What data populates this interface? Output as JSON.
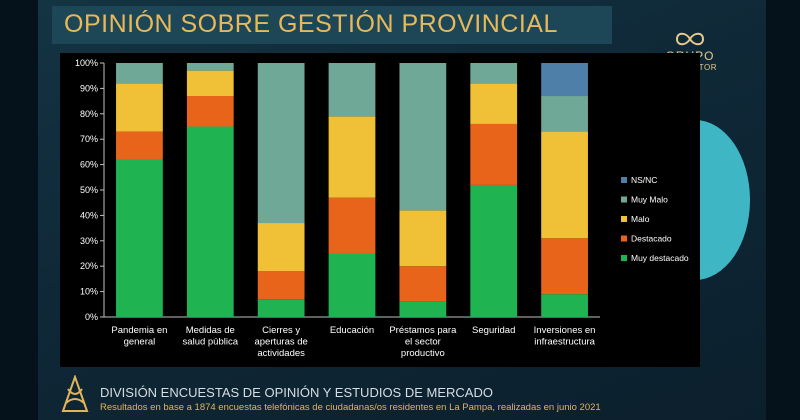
{
  "slide": {
    "title": "OPINIÓN SOBRE GESTIÓN PROVINCIAL",
    "logo_line1": "GRUPO",
    "logo_line2": "CONSULTOR",
    "footer_title": "DIVISIÓN ENCUESTAS DE OPINIÓN Y ESTUDIOS DE MERCADO",
    "footer_subtitle": "Resultados en base a 1874 encuestas telefónicas de ciudadanas/os residentes en La Pampa, realizadas en junio 2021"
  },
  "colors": {
    "NS/NC": "#4d7fa8",
    "Muy Malo": "#6fa896",
    "Malo": "#f0c037",
    "Destacado": "#e8641b",
    "Muy destacado": "#1fb352"
  },
  "chart_data": {
    "type": "bar",
    "stacked": true,
    "categories": [
      [
        "Pandemia en",
        "general"
      ],
      [
        "Medidas de",
        "salud pública"
      ],
      [
        "Cierres y",
        "aperturas de",
        "actividades"
      ],
      [
        "Educación"
      ],
      [
        "Préstamos para",
        "el sector",
        "productivo"
      ],
      [
        "Seguridad"
      ],
      [
        "Inversiones en",
        "infraestructura"
      ]
    ],
    "series": [
      {
        "name": "Muy destacado",
        "values": [
          62,
          75,
          7,
          25,
          6,
          52,
          9
        ]
      },
      {
        "name": "Destacado",
        "values": [
          11,
          12,
          11,
          22,
          14,
          24,
          22
        ]
      },
      {
        "name": "Malo",
        "values": [
          19,
          10,
          19,
          32,
          22,
          16,
          42
        ]
      },
      {
        "name": "Muy Malo",
        "values": [
          8,
          3,
          63,
          21,
          58,
          8,
          14
        ]
      },
      {
        "name": "NS/NC",
        "values": [
          0,
          0,
          0,
          0,
          0,
          0,
          13
        ]
      }
    ],
    "legend_order": [
      "NS/NC",
      "Muy Malo",
      "Malo",
      "Destacado",
      "Muy destacado"
    ],
    "ylim": [
      0,
      100
    ],
    "yticks": [
      "0%",
      "10%",
      "20%",
      "30%",
      "40%",
      "50%",
      "60%",
      "70%",
      "80%",
      "90%",
      "100%"
    ],
    "legend_position": "right",
    "grid": false
  }
}
